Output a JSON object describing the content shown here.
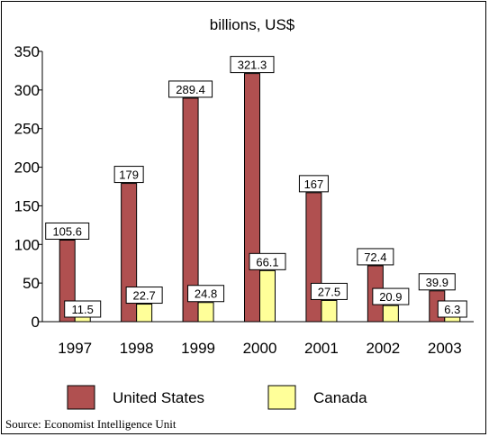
{
  "chart_data": {
    "type": "bar",
    "title": "billions, US$",
    "categories": [
      "1997",
      "1998",
      "1999",
      "2000",
      "2001",
      "2002",
      "2003"
    ],
    "series": [
      {
        "name": "United States",
        "values": [
          105.6,
          179,
          289.4,
          321.3,
          167,
          72.4,
          39.9
        ],
        "labels": [
          "105.6",
          "179",
          "289.4",
          "321.3",
          "167",
          "72.4",
          "39.9"
        ]
      },
      {
        "name": "Canada",
        "values": [
          11.5,
          22.7,
          24.8,
          66.1,
          27.5,
          20.9,
          6.3
        ],
        "labels": [
          "11.5",
          "22.7",
          "24.8",
          "66.1",
          "27.5",
          "20.9",
          "6.3"
        ]
      }
    ],
    "ylim": [
      0,
      350
    ],
    "yticks": [
      "0",
      "50",
      "100",
      "150",
      "200",
      "250",
      "300",
      "350"
    ],
    "legend_position": "bottom",
    "grid": false
  },
  "colors": {
    "united_states": "#b05050",
    "canada": "#ffff99"
  },
  "source": "Source: Economist Intelligence Unit"
}
